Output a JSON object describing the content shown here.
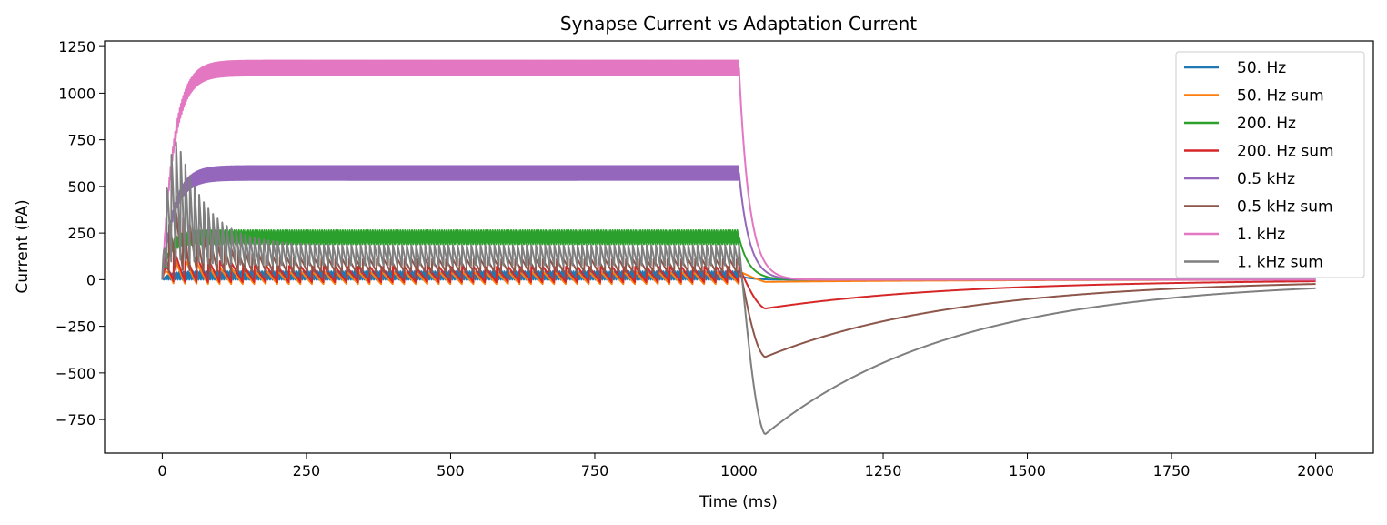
{
  "chart_data": {
    "type": "line",
    "title": "Synapse Current vs Adaptation Current",
    "xlabel": "Time (ms)",
    "ylabel": "Current (PA)",
    "xlim": [
      -100,
      2100
    ],
    "ylim": [
      -930,
      1280
    ],
    "xticks": [
      0,
      250,
      500,
      750,
      1000,
      1250,
      1500,
      1750,
      2000
    ],
    "xtick_labels": [
      "0",
      "250",
      "500",
      "750",
      "1000",
      "1250",
      "1500",
      "1750",
      "2000"
    ],
    "yticks": [
      -750,
      -500,
      -250,
      0,
      250,
      500,
      750,
      1000,
      1250
    ],
    "ytick_labels": [
      "−750",
      "−500",
      "−250",
      "0",
      "250",
      "500",
      "750",
      "1000",
      "1250"
    ],
    "grid": false,
    "legend_position": "top-right",
    "stimulus_end_ms": 1000,
    "duration_ms": 2000,
    "series": [
      {
        "name": "50. Hz",
        "color": "#1f77b4",
        "kind": "synapse",
        "rate_hz": 50,
        "plateau_low": 0,
        "plateau_high": 45,
        "peak": 45
      },
      {
        "name": "50. Hz sum",
        "color": "#ff7f0e",
        "kind": "sum",
        "rate_hz": 50,
        "plateau_low": -25,
        "plateau_high": 45,
        "peak": 130,
        "post_min": -12
      },
      {
        "name": "200. Hz",
        "color": "#2ca02c",
        "kind": "synapse",
        "rate_hz": 200,
        "plateau_low": 190,
        "plateau_high": 265,
        "peak": 265
      },
      {
        "name": "200. Hz sum",
        "color": "#d62728",
        "kind": "sum",
        "rate_hz": 200,
        "plateau_low": -15,
        "plateau_high": 70,
        "peak": 170,
        "post_min": -155
      },
      {
        "name": "0.5 kHz",
        "color": "#9467bd",
        "kind": "synapse",
        "rate_hz": 500,
        "plateau_low": 535,
        "plateau_high": 610,
        "peak": 610
      },
      {
        "name": "0.5 kHz sum",
        "color": "#8c564b",
        "kind": "sum",
        "rate_hz": 500,
        "plateau_low": 40,
        "plateau_high": 110,
        "peak": 380,
        "post_min": -415
      },
      {
        "name": "1. kHz",
        "color": "#e377c2",
        "kind": "synapse",
        "rate_hz": 1000,
        "plateau_low": 1095,
        "plateau_high": 1175,
        "peak": 1175
      },
      {
        "name": "1. kHz sum",
        "color": "#7f7f7f",
        "kind": "sum",
        "rate_hz": 1000,
        "plateau_low": 70,
        "plateau_high": 185,
        "peak": 775,
        "post_min": -830
      }
    ]
  }
}
